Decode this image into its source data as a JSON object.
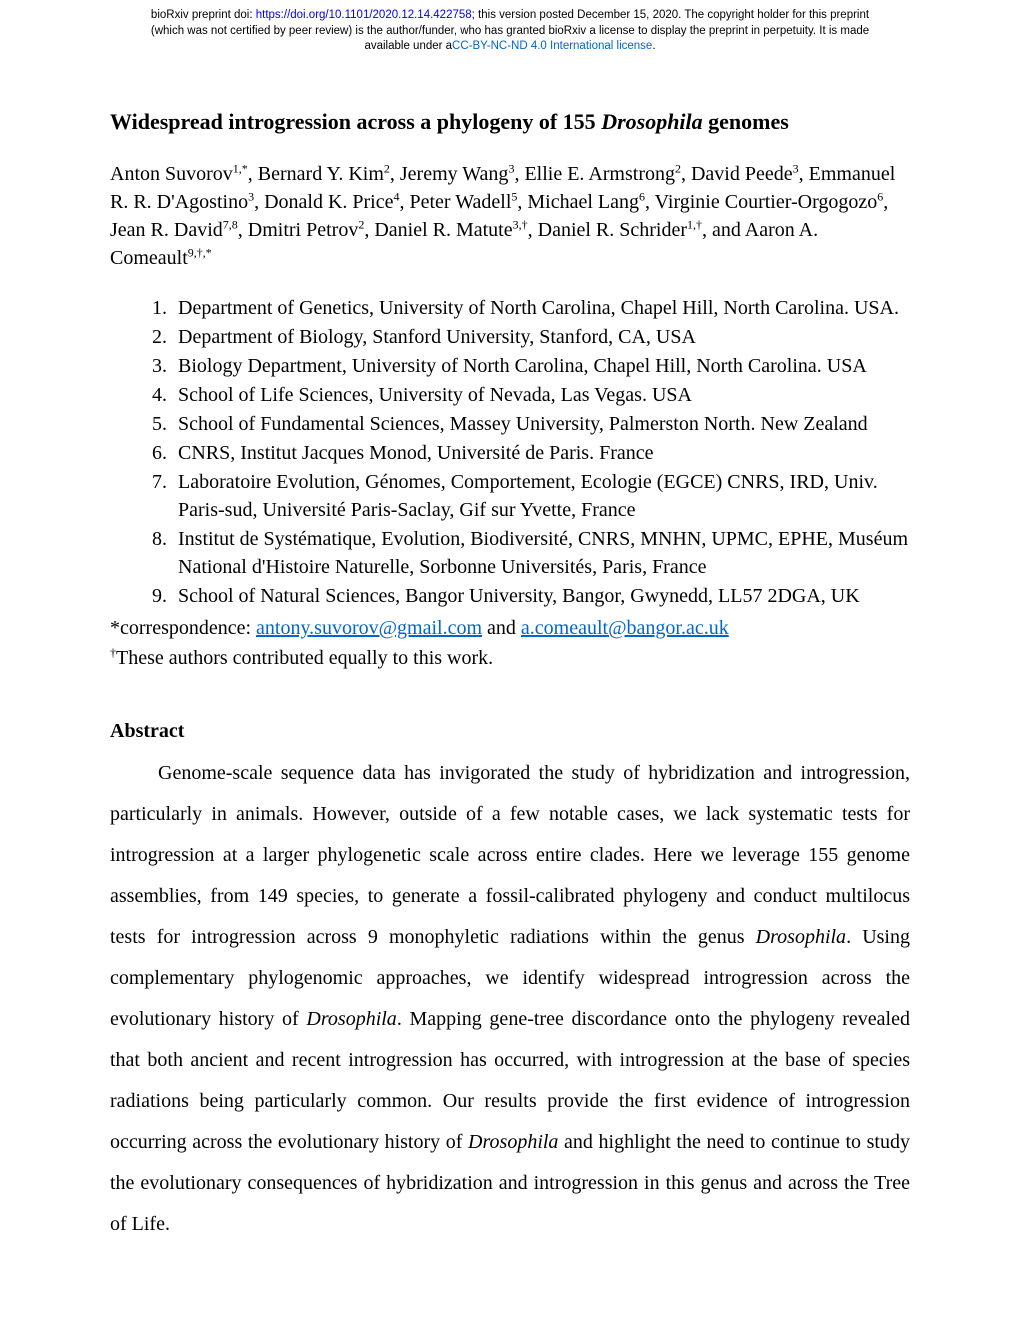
{
  "header": {
    "line1_pre": "bioRxiv preprint doi: ",
    "doi_text": "https://doi.org/10.1101/2020.12.14.422758",
    "line1_post": "; this version posted December 15, 2020. The copyright holder for this preprint",
    "line2": "(which was not certified by peer review) is the author/funder, who has granted bioRxiv a license to display the preprint in perpetuity. It is made",
    "line3_pre": "available under a",
    "license_text": "CC-BY-NC-ND 4.0 International license",
    "line3_post": "."
  },
  "title": {
    "part1": "Widespread introgression across a phylogeny of 155 ",
    "italic": "Drosophila",
    "part2": " genomes"
  },
  "authors_html": "Anton Suvorov<sup>1,*</sup>, Bernard Y. Kim<sup>2</sup>, Jeremy Wang<sup>3</sup>, Ellie E. Armstrong<sup>2</sup>, David Peede<sup>3</sup>, Emmanuel R. R. D'Agostino<sup>3</sup>, Donald K. Price<sup>4</sup>, Peter Wadell<sup>5</sup>, Michael Lang<sup>6</sup>, Virginie Courtier-Orgogozo<sup>6</sup>, Jean R. David<sup>7,8</sup>, Dmitri Petrov<sup>2</sup>, Daniel R. Matute<sup>3,†</sup>, Daniel R. Schrider<sup>1,†</sup>, and Aaron A. Comeault<sup>9,†,*</sup>",
  "affiliations": [
    "Department of Genetics, University of North Carolina, Chapel Hill, North Carolina. USA.",
    "Department of Biology, Stanford University, Stanford, CA, USA",
    "Biology Department, University of North Carolina, Chapel Hill, North Carolina. USA",
    "School of Life Sciences, University of Nevada, Las Vegas. USA",
    "School of Fundamental Sciences, Massey University, Palmerston North. New Zealand",
    "CNRS, Institut Jacques Monod, Université de Paris. France",
    "Laboratoire Evolution, Génomes, Comportement, Ecologie (EGCE) CNRS, IRD, Univ. Paris-sud, Université Paris-Saclay, Gif sur Yvette, France",
    "Institut de Systématique, Evolution, Biodiversité, CNRS, MNHN, UPMC, EPHE, Muséum National d'Histoire Naturelle, Sorbonne Universités, Paris, France",
    "School of Natural Sciences, Bangor University, Bangor, Gwynedd, LL57 2DGA, UK"
  ],
  "correspondence": {
    "pre": "*correspondence: ",
    "email1": "antony.suvorov@gmail.com",
    "mid": " and ",
    "email2": "a.comeault@bangor.ac.uk"
  },
  "equal_contrib": "These authors contributed equally to this work.",
  "abstract_heading": "Abstract",
  "abstract": {
    "p1": "Genome-scale sequence data has invigorated the study of hybridization and introgression, particularly in animals. However, outside of a few notable cases, we lack systematic tests for introgression at a larger phylogenetic scale across entire clades. Here we leverage 155 genome assemblies, from 149 species, to generate a fossil-calibrated phylogeny and conduct multilocus tests for introgression across 9 monophyletic radiations within the genus ",
    "i1": "Drosophila",
    "p2": ". Using complementary phylogenomic approaches, we identify widespread introgression across the evolutionary history of ",
    "i2": "Drosophila",
    "p3": ". Mapping gene-tree discordance onto the phylogeny revealed that both ancient and recent introgression has occurred, with introgression at the base of species radiations being particularly common. Our results provide the first evidence of introgression occurring across the evolutionary history of ",
    "i3": "Drosophila",
    "p4": " and highlight the need to continue to study the evolutionary consequences of hybridization and introgression in this genus and across the Tree of Life."
  }
}
